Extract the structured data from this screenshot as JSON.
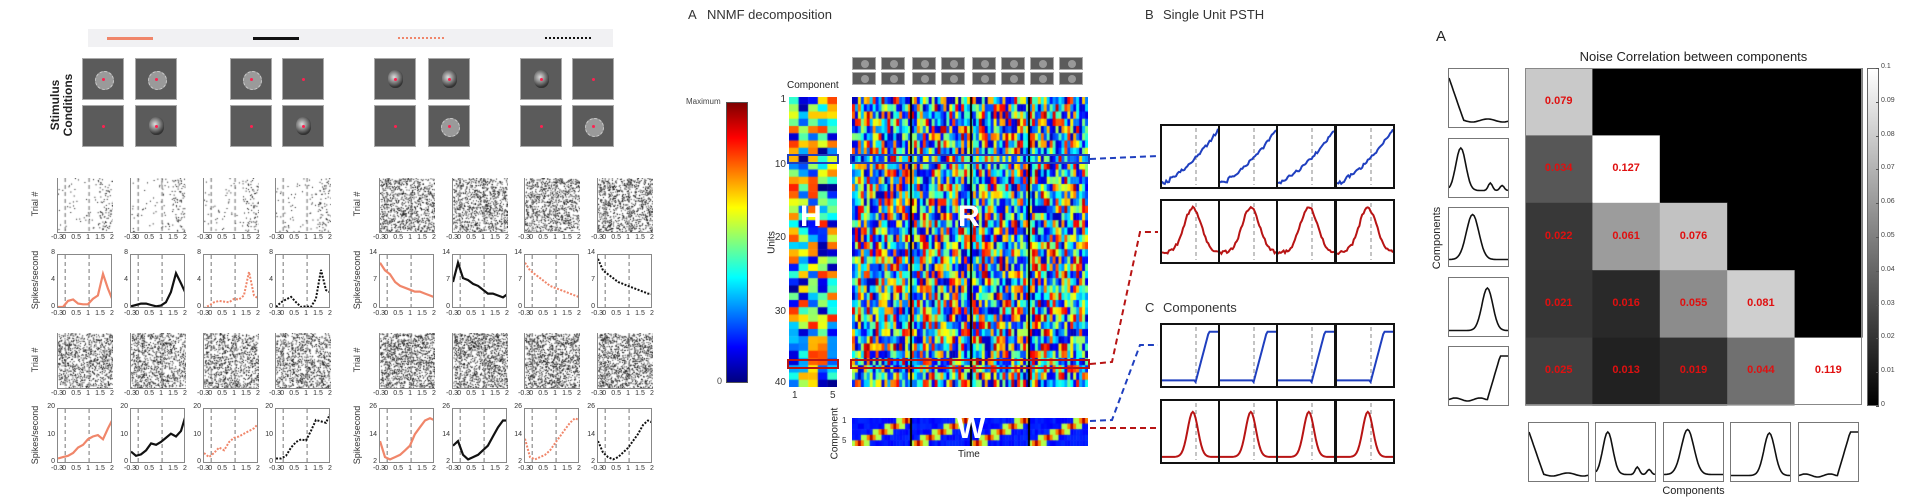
{
  "left": {
    "legend": [
      {
        "color": "#f0866a",
        "style": "solid"
      },
      {
        "color": "#111111",
        "style": "solid"
      },
      {
        "color": "#f0866a",
        "style": "dotted"
      },
      {
        "color": "#111111",
        "style": "dotted"
      }
    ],
    "stimulus_label_1": "Stimulus",
    "stimulus_label_2": "Conditions",
    "stimuli": [
      [
        "gear",
        "gear",
        "blank",
        "face"
      ],
      [
        "gear",
        "blank",
        "blank",
        "face"
      ],
      [
        "face",
        "face",
        "blank",
        "gear"
      ],
      [
        "face",
        "blank",
        "blank",
        "gear"
      ]
    ],
    "trial_label": "Trial #",
    "rate_label": "Spikes/second",
    "x_ticks": [
      "-0.3",
      "0",
      "0.5",
      "1",
      "1.5",
      "2"
    ]
  },
  "nnmf": {
    "panel_letter": "A",
    "title": "NNMF decomposition",
    "colorbar_max": "Maximum",
    "colorbar_min": "0",
    "component_label": "Component",
    "units_label": "Units",
    "unit_ticks": [
      "1",
      "10",
      "20",
      "30",
      "40"
    ],
    "component_ticks": [
      "1",
      "5"
    ],
    "h_letter": "H",
    "r_letter": "R",
    "w_letter": "W",
    "w_ticks": [
      "1",
      "5"
    ],
    "w_ylabel": "Component",
    "time_label": "Time"
  },
  "psth": {
    "panel_letter": "B",
    "title": "Single Unit PSTH"
  },
  "components": {
    "panel_letter": "C",
    "title": "Components"
  },
  "noise": {
    "panel_letter": "A",
    "ylabel": "Components",
    "xlabel": "Components"
  },
  "colors": {
    "salmon": "#f0866a",
    "blue": "#1f3fbf",
    "red": "#b81414",
    "cell_text": "#e01010"
  },
  "chart_data": [
    {
      "type": "heatmap",
      "title": "Noise Correlation between components",
      "xlabel": "Components",
      "ylabel": "Components",
      "colormap": "gray",
      "clim": [
        0,
        0.1
      ],
      "colorbar_ticks": [
        "0",
        "0.01",
        "0.02",
        "0.03",
        "0.04",
        "0.05",
        "0.06",
        "0.07",
        "0.08",
        "0.09",
        "0.1"
      ],
      "values": [
        [
          0.079,
          null,
          null,
          null,
          null
        ],
        [
          0.034,
          0.127,
          null,
          null,
          null
        ],
        [
          0.022,
          0.061,
          0.076,
          null,
          null
        ],
        [
          0.021,
          0.016,
          0.055,
          0.081,
          null
        ],
        [
          0.025,
          0.013,
          0.019,
          0.044,
          0.119
        ]
      ]
    },
    {
      "type": "line",
      "xlabel": "",
      "ylabel": "Spikes/second",
      "xlim": [
        -0.3,
        2
      ],
      "x_ticks": [
        "-0.3",
        "0",
        "0.5",
        "1",
        "1.5",
        "2"
      ],
      "x": [
        -0.3,
        -0.09,
        0.12,
        0.33,
        0.54,
        0.75,
        0.95,
        1.16,
        1.37,
        1.58,
        1.79,
        2.0
      ],
      "panels": [
        {
          "ylim": [
            0,
            8
          ],
          "y_ticks": [
            "0",
            "4",
            "8"
          ],
          "style": 0,
          "values": [
            0.3,
            0.3,
            1.2,
            1.4,
            0.8,
            0.7,
            0.7,
            1.5,
            2,
            5.2,
            3,
            1.2
          ]
        },
        {
          "ylim": [
            0,
            8
          ],
          "y_ticks": [
            "0",
            "4",
            "8"
          ],
          "style": 1,
          "values": [
            0.4,
            0.6,
            0.8,
            0.8,
            0.6,
            0.4,
            0.5,
            1,
            2.5,
            5.3,
            3.8,
            2.2
          ]
        },
        {
          "ylim": [
            0,
            8
          ],
          "y_ticks": [
            "0",
            "4",
            "8"
          ],
          "style": 2,
          "values": [
            0.1,
            0.5,
            1,
            1.2,
            1.1,
            1,
            1.5,
            1.4,
            2,
            5.5,
            2,
            1.5
          ]
        },
        {
          "ylim": [
            0,
            8
          ],
          "y_ticks": [
            "0",
            "4",
            "8"
          ],
          "style": 3,
          "values": [
            0.3,
            1,
            1.4,
            1.8,
            1,
            0.3,
            0.4,
            0.3,
            1.5,
            5.8,
            2.8,
            2.4
          ]
        },
        {
          "ylim": [
            0,
            14
          ],
          "y_ticks": [
            "0",
            "7",
            "14"
          ],
          "style": 0,
          "values": [
            12,
            10,
            9,
            7,
            6,
            5.5,
            5,
            4.5,
            4.5,
            4,
            3.5,
            3
          ]
        },
        {
          "ylim": [
            0,
            14
          ],
          "y_ticks": [
            "0",
            "7",
            "14"
          ],
          "style": 1,
          "values": [
            7,
            12,
            8,
            7.5,
            6.5,
            6,
            5,
            4,
            4,
            3.5,
            3,
            4
          ]
        },
        {
          "ylim": [
            0,
            14
          ],
          "y_ticks": [
            "0",
            "7",
            "14"
          ],
          "style": 2,
          "values": [
            12,
            10,
            9,
            8,
            7,
            6,
            5.5,
            5,
            4.5,
            4,
            3.5,
            3
          ]
        },
        {
          "ylim": [
            0,
            14
          ],
          "y_ticks": [
            "0",
            "7",
            "14"
          ],
          "style": 3,
          "values": [
            13,
            10,
            9,
            8,
            7,
            6.5,
            6,
            5.5,
            5,
            4.5,
            4,
            3.8
          ]
        },
        {
          "ylim": [
            0,
            20
          ],
          "y_ticks": [
            "0",
            "10",
            "20"
          ],
          "style": 0,
          "values": [
            2,
            2.5,
            3,
            4,
            6,
            7,
            9,
            10,
            10.5,
            9,
            13,
            16.5
          ]
        },
        {
          "ylim": [
            0,
            20
          ],
          "y_ticks": [
            "0",
            "10",
            "20"
          ],
          "style": 1,
          "values": [
            4.5,
            3,
            3.5,
            5,
            7.5,
            7,
            8,
            9.5,
            11,
            10,
            12,
            18
          ]
        },
        {
          "ylim": [
            0,
            20
          ],
          "y_ticks": [
            "0",
            "10",
            "20"
          ],
          "style": 2,
          "values": [
            4,
            2.5,
            4,
            6,
            5,
            8,
            9.5,
            10,
            11,
            12,
            13,
            15
          ]
        },
        {
          "ylim": [
            0,
            20
          ],
          "y_ticks": [
            "0",
            "10",
            "20"
          ],
          "style": 3,
          "values": [
            2,
            2,
            3,
            6,
            8,
            9,
            8.5,
            12,
            16,
            15.5,
            15,
            19
          ]
        },
        {
          "ylim": [
            2,
            26
          ],
          "y_ticks": [
            "2",
            "14",
            "26"
          ],
          "style": 0,
          "values": [
            12,
            5,
            4,
            5,
            6,
            8,
            10,
            15,
            18,
            21,
            22,
            21
          ]
        },
        {
          "ylim": [
            2,
            26
          ],
          "y_ticks": [
            "2",
            "14",
            "26"
          ],
          "style": 1,
          "values": [
            10,
            12,
            6,
            4,
            5,
            6,
            8,
            10,
            14,
            18,
            21,
            21
          ]
        },
        {
          "ylim": [
            2,
            26
          ],
          "y_ticks": [
            "2",
            "14",
            "26"
          ],
          "style": 2,
          "values": [
            13,
            5,
            4,
            5,
            6,
            8,
            11,
            14,
            17,
            20,
            22,
            21
          ]
        },
        {
          "ylim": [
            2,
            26
          ],
          "y_ticks": [
            "2",
            "14",
            "26"
          ],
          "style": 3,
          "values": [
            12,
            7,
            5,
            4,
            5,
            7,
            9,
            12,
            15,
            19,
            21,
            20
          ]
        }
      ]
    }
  ]
}
